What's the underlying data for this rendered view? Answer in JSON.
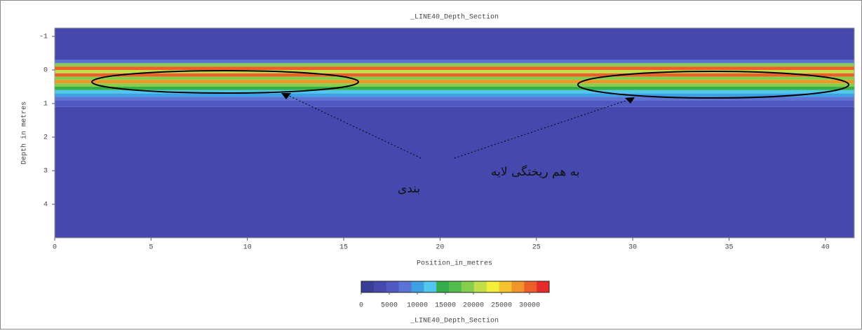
{
  "chart_data": {
    "type": "heatmap",
    "title": "_LINE40_Depth_Section",
    "x_label": "Position_in_metres",
    "y_label": "Depth in metres",
    "xlim": [
      0,
      41.5
    ],
    "xticks": [
      0,
      5,
      10,
      15,
      20,
      25,
      30,
      35,
      40
    ],
    "ylim": [
      -1.25,
      5
    ],
    "yticks": [
      -1,
      0,
      1,
      2,
      3,
      4
    ],
    "y_inverted": true,
    "y_edges": [
      -1.25,
      -0.3,
      -0.2,
      -0.1,
      0,
      0.1,
      0.2,
      0.3,
      0.4,
      0.5,
      0.6,
      0.7,
      0.8,
      0.9,
      1.1,
      5
    ],
    "values": [
      2500,
      8000,
      20000,
      30000,
      22000,
      31000,
      20000,
      29000,
      18000,
      15000,
      13000,
      11000,
      8000,
      5000,
      2500
    ],
    "colorbar": {
      "clim": [
        0,
        33500
      ],
      "ticks": [
        0,
        5000,
        10000,
        15000,
        20000,
        25000,
        30000
      ],
      "title": "_LINE40_Depth_Section",
      "colors": [
        "#3a3d96",
        "#4549ad",
        "#5059c2",
        "#5a73d4",
        "#3e9fe2",
        "#51c6ef",
        "#36ad4b",
        "#52bd4c",
        "#86cf4c",
        "#c2de48",
        "#f2ee3a",
        "#f6c22d",
        "#f1952a",
        "#ec5f29",
        "#e62b2a"
      ]
    },
    "annotation": [
      "به هم ریختگی لایه",
      "بندی"
    ]
  }
}
